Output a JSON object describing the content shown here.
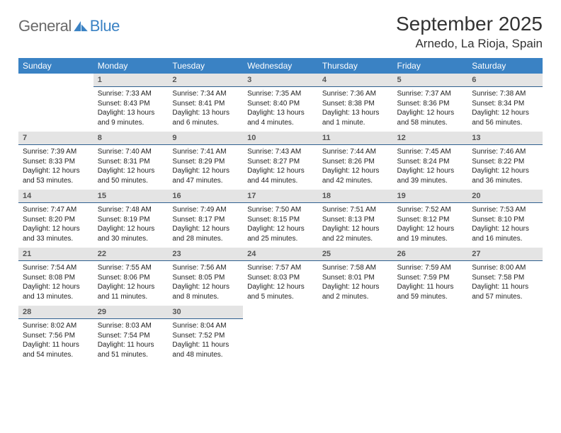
{
  "brand": {
    "part1": "General",
    "part2": "Blue"
  },
  "colors": {
    "header_bg": "#3a82c4",
    "header_fg": "#ffffff",
    "daynum_bg": "#e4e4e4",
    "daynum_fg": "#555555",
    "daynum_border": "#2f5f8f",
    "page_bg": "#ffffff",
    "text": "#222222"
  },
  "title": "September 2025",
  "location": "Arnedo, La Rioja, Spain",
  "weekdays": [
    "Sunday",
    "Monday",
    "Tuesday",
    "Wednesday",
    "Thursday",
    "Friday",
    "Saturday"
  ],
  "start_weekday_index": 1,
  "days": [
    {
      "n": 1,
      "sunrise": "7:33 AM",
      "sunset": "8:43 PM",
      "daylight": "13 hours and 9 minutes."
    },
    {
      "n": 2,
      "sunrise": "7:34 AM",
      "sunset": "8:41 PM",
      "daylight": "13 hours and 6 minutes."
    },
    {
      "n": 3,
      "sunrise": "7:35 AM",
      "sunset": "8:40 PM",
      "daylight": "13 hours and 4 minutes."
    },
    {
      "n": 4,
      "sunrise": "7:36 AM",
      "sunset": "8:38 PM",
      "daylight": "13 hours and 1 minute."
    },
    {
      "n": 5,
      "sunrise": "7:37 AM",
      "sunset": "8:36 PM",
      "daylight": "12 hours and 58 minutes."
    },
    {
      "n": 6,
      "sunrise": "7:38 AM",
      "sunset": "8:34 PM",
      "daylight": "12 hours and 56 minutes."
    },
    {
      "n": 7,
      "sunrise": "7:39 AM",
      "sunset": "8:33 PM",
      "daylight": "12 hours and 53 minutes."
    },
    {
      "n": 8,
      "sunrise": "7:40 AM",
      "sunset": "8:31 PM",
      "daylight": "12 hours and 50 minutes."
    },
    {
      "n": 9,
      "sunrise": "7:41 AM",
      "sunset": "8:29 PM",
      "daylight": "12 hours and 47 minutes."
    },
    {
      "n": 10,
      "sunrise": "7:43 AM",
      "sunset": "8:27 PM",
      "daylight": "12 hours and 44 minutes."
    },
    {
      "n": 11,
      "sunrise": "7:44 AM",
      "sunset": "8:26 PM",
      "daylight": "12 hours and 42 minutes."
    },
    {
      "n": 12,
      "sunrise": "7:45 AM",
      "sunset": "8:24 PM",
      "daylight": "12 hours and 39 minutes."
    },
    {
      "n": 13,
      "sunrise": "7:46 AM",
      "sunset": "8:22 PM",
      "daylight": "12 hours and 36 minutes."
    },
    {
      "n": 14,
      "sunrise": "7:47 AM",
      "sunset": "8:20 PM",
      "daylight": "12 hours and 33 minutes."
    },
    {
      "n": 15,
      "sunrise": "7:48 AM",
      "sunset": "8:19 PM",
      "daylight": "12 hours and 30 minutes."
    },
    {
      "n": 16,
      "sunrise": "7:49 AM",
      "sunset": "8:17 PM",
      "daylight": "12 hours and 28 minutes."
    },
    {
      "n": 17,
      "sunrise": "7:50 AM",
      "sunset": "8:15 PM",
      "daylight": "12 hours and 25 minutes."
    },
    {
      "n": 18,
      "sunrise": "7:51 AM",
      "sunset": "8:13 PM",
      "daylight": "12 hours and 22 minutes."
    },
    {
      "n": 19,
      "sunrise": "7:52 AM",
      "sunset": "8:12 PM",
      "daylight": "12 hours and 19 minutes."
    },
    {
      "n": 20,
      "sunrise": "7:53 AM",
      "sunset": "8:10 PM",
      "daylight": "12 hours and 16 minutes."
    },
    {
      "n": 21,
      "sunrise": "7:54 AM",
      "sunset": "8:08 PM",
      "daylight": "12 hours and 13 minutes."
    },
    {
      "n": 22,
      "sunrise": "7:55 AM",
      "sunset": "8:06 PM",
      "daylight": "12 hours and 11 minutes."
    },
    {
      "n": 23,
      "sunrise": "7:56 AM",
      "sunset": "8:05 PM",
      "daylight": "12 hours and 8 minutes."
    },
    {
      "n": 24,
      "sunrise": "7:57 AM",
      "sunset": "8:03 PM",
      "daylight": "12 hours and 5 minutes."
    },
    {
      "n": 25,
      "sunrise": "7:58 AM",
      "sunset": "8:01 PM",
      "daylight": "12 hours and 2 minutes."
    },
    {
      "n": 26,
      "sunrise": "7:59 AM",
      "sunset": "7:59 PM",
      "daylight": "11 hours and 59 minutes."
    },
    {
      "n": 27,
      "sunrise": "8:00 AM",
      "sunset": "7:58 PM",
      "daylight": "11 hours and 57 minutes."
    },
    {
      "n": 28,
      "sunrise": "8:02 AM",
      "sunset": "7:56 PM",
      "daylight": "11 hours and 54 minutes."
    },
    {
      "n": 29,
      "sunrise": "8:03 AM",
      "sunset": "7:54 PM",
      "daylight": "11 hours and 51 minutes."
    },
    {
      "n": 30,
      "sunrise": "8:04 AM",
      "sunset": "7:52 PM",
      "daylight": "11 hours and 48 minutes."
    }
  ],
  "labels": {
    "sunrise": "Sunrise:",
    "sunset": "Sunset:",
    "daylight": "Daylight:"
  }
}
